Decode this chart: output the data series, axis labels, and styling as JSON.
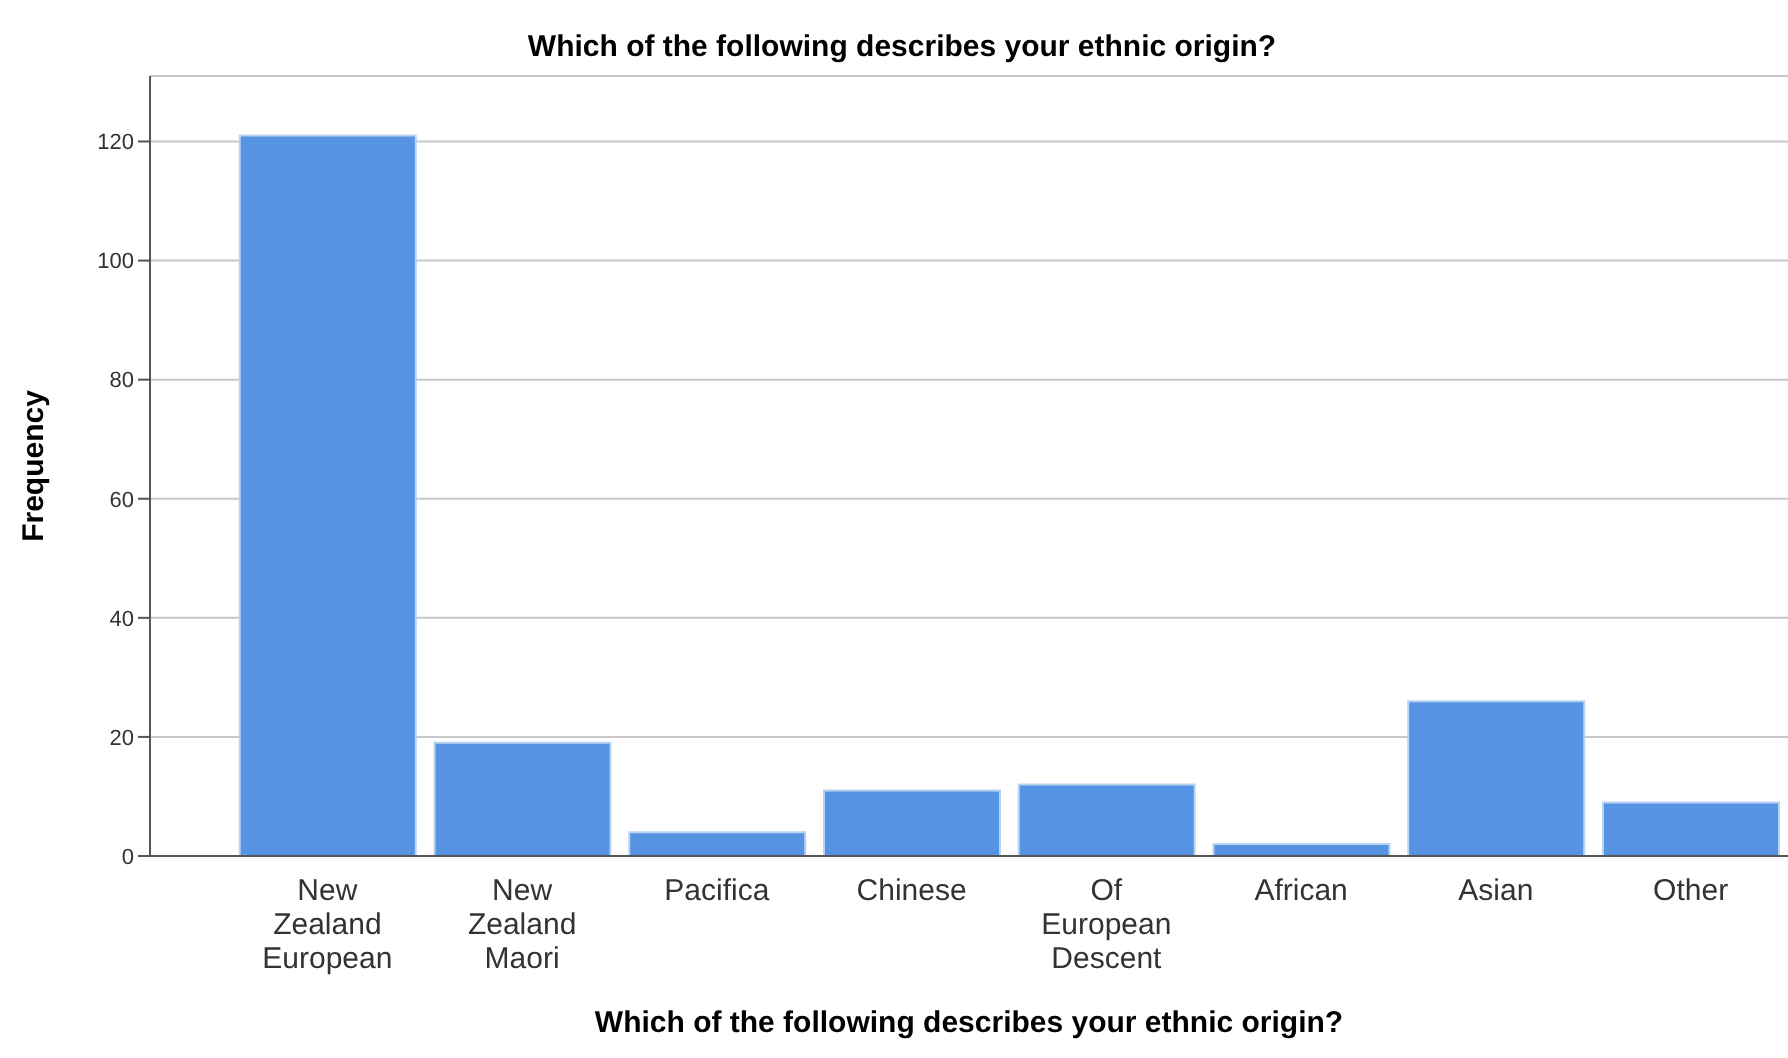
{
  "chart_data": {
    "type": "bar",
    "title": "Which of the following describes your ethnic origin?",
    "xlabel": "Which of the following describes your ethnic origin?",
    "ylabel": "Frequency",
    "categories": [
      "New Zealand European",
      "New Zealand Maori",
      "Pacifica",
      "Chinese",
      "Of European Descent",
      "African",
      "Asian",
      "Other"
    ],
    "values": [
      121,
      19,
      4,
      11,
      12,
      2,
      26,
      9
    ],
    "color": "#5694e3",
    "ylim": [
      0,
      131
    ],
    "yticks": [
      0,
      20,
      40,
      60,
      80,
      100,
      120
    ],
    "grid": "y"
  }
}
